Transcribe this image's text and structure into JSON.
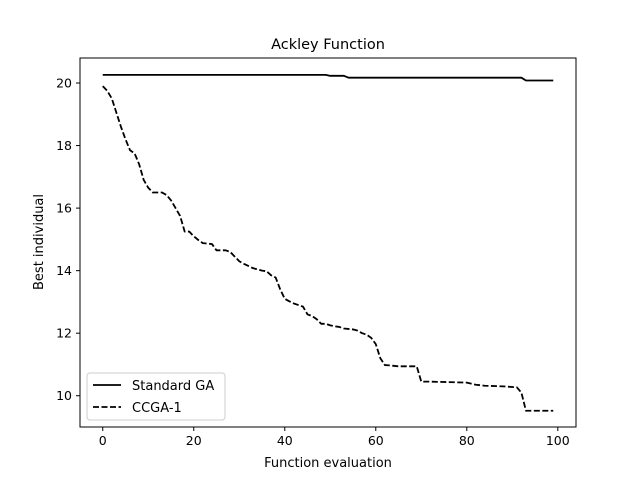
{
  "chart_data": {
    "type": "line",
    "title": "Ackley Function",
    "xlabel": "Function evaluation",
    "ylabel": "Best individual",
    "xlim": [
      -5,
      104
    ],
    "ylim": [
      9.0,
      20.8
    ],
    "xticks": [
      0,
      20,
      40,
      60,
      80,
      100
    ],
    "yticks": [
      10,
      12,
      14,
      16,
      18,
      20
    ],
    "grid": false,
    "legend_position": "bottom-left",
    "series": [
      {
        "name": "Standard GA",
        "style": "solid",
        "color": "#000000",
        "points": [
          [
            0,
            20.26
          ],
          [
            49,
            20.26
          ],
          [
            50,
            20.23
          ],
          [
            53,
            20.23
          ],
          [
            54,
            20.17
          ],
          [
            92,
            20.17
          ],
          [
            93,
            20.08
          ],
          [
            99,
            20.08
          ]
        ]
      },
      {
        "name": "CCGA-1",
        "style": "dashed",
        "color": "#000000",
        "points": [
          [
            0,
            19.9
          ],
          [
            1,
            19.75
          ],
          [
            2,
            19.5
          ],
          [
            3,
            19.05
          ],
          [
            4,
            18.6
          ],
          [
            5,
            18.2
          ],
          [
            6,
            17.85
          ],
          [
            7,
            17.75
          ],
          [
            8,
            17.4
          ],
          [
            9,
            16.9
          ],
          [
            10,
            16.65
          ],
          [
            11,
            16.5
          ],
          [
            13,
            16.5
          ],
          [
            14,
            16.42
          ],
          [
            15,
            16.25
          ],
          [
            16,
            16.0
          ],
          [
            17,
            15.75
          ],
          [
            18,
            15.25
          ],
          [
            19,
            15.25
          ],
          [
            20,
            15.1
          ],
          [
            21,
            14.98
          ],
          [
            22,
            14.88
          ],
          [
            24,
            14.85
          ],
          [
            25,
            14.65
          ],
          [
            27,
            14.65
          ],
          [
            28,
            14.6
          ],
          [
            29,
            14.45
          ],
          [
            30,
            14.3
          ],
          [
            31,
            14.22
          ],
          [
            32,
            14.15
          ],
          [
            33,
            14.08
          ],
          [
            35,
            14.0
          ],
          [
            36,
            13.98
          ],
          [
            37,
            13.85
          ],
          [
            38,
            13.78
          ],
          [
            39,
            13.4
          ],
          [
            40,
            13.1
          ],
          [
            41,
            13.02
          ],
          [
            42,
            12.95
          ],
          [
            43,
            12.9
          ],
          [
            44,
            12.85
          ],
          [
            45,
            12.6
          ],
          [
            46,
            12.55
          ],
          [
            47,
            12.45
          ],
          [
            48,
            12.3
          ],
          [
            49,
            12.3
          ],
          [
            50,
            12.25
          ],
          [
            51,
            12.22
          ],
          [
            52,
            12.2
          ],
          [
            53,
            12.15
          ],
          [
            55,
            12.12
          ],
          [
            56,
            12.08
          ],
          [
            57,
            12.0
          ],
          [
            58,
            11.95
          ],
          [
            59,
            11.85
          ],
          [
            60,
            11.65
          ],
          [
            61,
            11.2
          ],
          [
            62,
            10.98
          ],
          [
            63,
            10.97
          ],
          [
            65,
            10.94
          ],
          [
            69,
            10.94
          ],
          [
            70,
            10.45
          ],
          [
            72,
            10.45
          ],
          [
            80,
            10.42
          ],
          [
            82,
            10.35
          ],
          [
            84,
            10.32
          ],
          [
            88,
            10.3
          ],
          [
            91,
            10.27
          ],
          [
            92,
            10.1
          ],
          [
            93,
            9.52
          ],
          [
            99,
            9.52
          ]
        ]
      }
    ]
  }
}
